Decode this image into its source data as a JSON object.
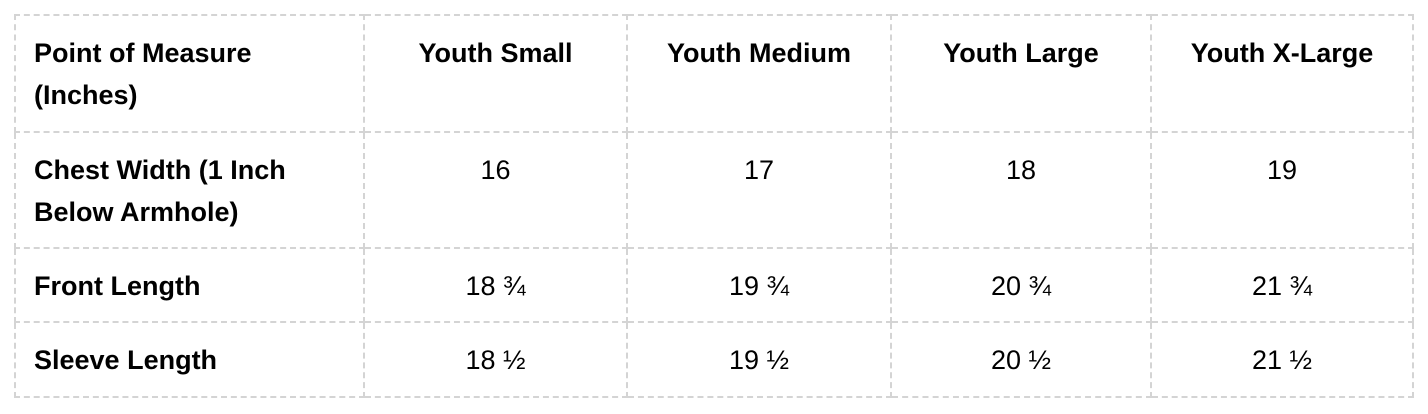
{
  "table": {
    "header": [
      "Point of Measure (Inches)",
      "Youth Small",
      "Youth Medium",
      "Youth Large",
      "Youth X-Large"
    ],
    "rows": [
      [
        "Chest Width (1 Inch Below Armhole)",
        "16",
        "17",
        "18",
        "19"
      ],
      [
        "Front Length",
        "18 ¾",
        "19 ¾",
        "20 ¾",
        "21 ¾"
      ],
      [
        "Sleeve Length",
        "18 ½",
        "19 ½",
        "20 ½",
        "21 ½"
      ]
    ]
  }
}
